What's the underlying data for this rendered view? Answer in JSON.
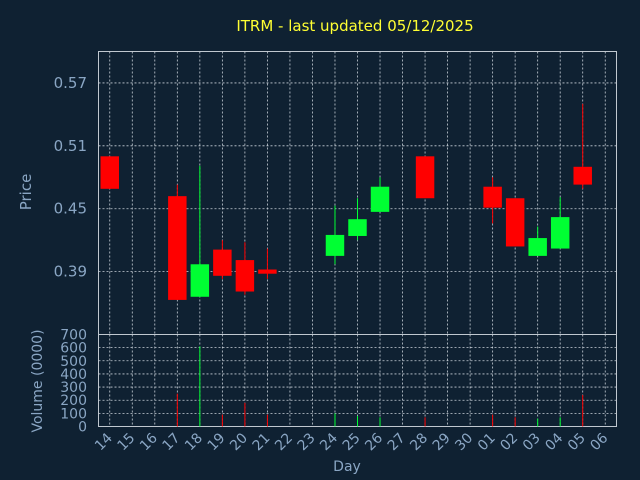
{
  "chart_data": {
    "type": "candlestick",
    "title": "ITRM - last updated 05/12/2025",
    "xlabel": "Day",
    "price_panel": {
      "ylabel": "Price",
      "yticks": [
        "0.57",
        "0.51",
        "0.45",
        "0.39"
      ],
      "ylim": [
        0.33,
        0.6
      ],
      "grid": true
    },
    "volume_panel": {
      "ylabel": "Volume (0000)",
      "yticks": [
        "0",
        "100",
        "200",
        "300",
        "400",
        "500",
        "600",
        "700"
      ],
      "ylim": [
        0,
        700
      ],
      "grid": true
    },
    "x_labels": [
      "14",
      "15",
      "16",
      "17",
      "18",
      "19",
      "20",
      "21",
      "22",
      "23",
      "24",
      "25",
      "26",
      "27",
      "28",
      "29",
      "30",
      "01",
      "02",
      "03",
      "04",
      "05",
      "06"
    ],
    "candles": [
      {
        "day": "14",
        "open": 0.5,
        "close": 0.469,
        "high": 0.5,
        "low": 0.469,
        "volume": 0
      },
      {
        "day": "17",
        "open": 0.462,
        "close": 0.363,
        "high": 0.473,
        "low": 0.363,
        "volume": 250
      },
      {
        "day": "18",
        "open": 0.366,
        "close": 0.397,
        "high": 0.491,
        "low": 0.366,
        "volume": 610
      },
      {
        "day": "19",
        "open": 0.411,
        "close": 0.386,
        "high": 0.42,
        "low": 0.383,
        "volume": 90
      },
      {
        "day": "20",
        "open": 0.401,
        "close": 0.371,
        "high": 0.418,
        "low": 0.368,
        "volume": 180
      },
      {
        "day": "21",
        "open": 0.392,
        "close": 0.388,
        "high": 0.412,
        "low": 0.383,
        "volume": 90
      },
      {
        "day": "24",
        "open": 0.405,
        "close": 0.425,
        "high": 0.453,
        "low": 0.397,
        "volume": 100
      },
      {
        "day": "25",
        "open": 0.424,
        "close": 0.44,
        "high": 0.46,
        "low": 0.42,
        "volume": 80
      },
      {
        "day": "26",
        "open": 0.447,
        "close": 0.471,
        "high": 0.48,
        "low": 0.447,
        "volume": 70
      },
      {
        "day": "28",
        "open": 0.5,
        "close": 0.46,
        "high": 0.5,
        "low": 0.46,
        "volume": 70
      },
      {
        "day": "01",
        "open": 0.471,
        "close": 0.451,
        "high": 0.48,
        "low": 0.436,
        "volume": 90
      },
      {
        "day": "02",
        "open": 0.46,
        "close": 0.414,
        "high": 0.46,
        "low": 0.414,
        "volume": 70
      },
      {
        "day": "03",
        "open": 0.405,
        "close": 0.422,
        "high": 0.433,
        "low": 0.405,
        "volume": 60
      },
      {
        "day": "04",
        "open": 0.412,
        "close": 0.442,
        "high": 0.461,
        "low": 0.412,
        "volume": 70
      },
      {
        "day": "05",
        "open": 0.49,
        "close": 0.473,
        "high": 0.55,
        "low": 0.469,
        "volume": 240
      }
    ],
    "colors": {
      "up": "#00ff33",
      "down": "#ff0000",
      "background": "#0f2132",
      "title": "#ffff33",
      "axis_text": "#8aa6c4",
      "grid": "#c8d0d8",
      "frame": "#c0c8d0"
    }
  }
}
